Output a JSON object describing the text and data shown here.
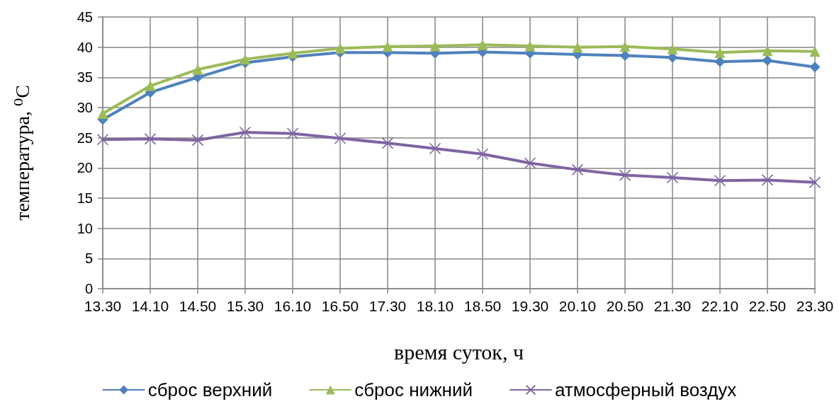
{
  "chart_data": {
    "type": "line",
    "xlabel": "время суток, ч",
    "ylabel": "температура, ⁰C",
    "categories": [
      "13.30",
      "14.10",
      "14.50",
      "15.30",
      "16.10",
      "16.50",
      "17.30",
      "18.10",
      "18.50",
      "19.30",
      "20.10",
      "20.50",
      "21.30",
      "22.10",
      "22.50",
      "23.30"
    ],
    "series": [
      {
        "name": "сброс верхний",
        "color": "#4f81bd",
        "marker": "diamond",
        "values": [
          28.0,
          32.5,
          35.0,
          37.4,
          38.4,
          39.1,
          39.1,
          39.0,
          39.2,
          39.0,
          38.8,
          38.6,
          38.3,
          37.6,
          37.8,
          36.7
        ]
      },
      {
        "name": "сброс нижний",
        "color": "#9bbb59",
        "marker": "triangle",
        "values": [
          29.0,
          33.6,
          36.3,
          38.0,
          39.0,
          39.8,
          40.1,
          40.2,
          40.4,
          40.2,
          40.0,
          40.1,
          39.7,
          39.1,
          39.4,
          39.3
        ]
      },
      {
        "name": "атмосферный воздух",
        "color": "#8064a2",
        "marker": "cross",
        "values": [
          24.7,
          24.8,
          24.6,
          25.9,
          25.7,
          24.9,
          24.1,
          23.2,
          22.3,
          20.8,
          19.7,
          18.8,
          18.4,
          17.9,
          18.0,
          17.6
        ]
      }
    ],
    "ylim": [
      0,
      45
    ],
    "yticks": [
      0,
      5,
      10,
      15,
      20,
      25,
      30,
      35,
      40,
      45
    ],
    "grid": true,
    "legend": "bottom",
    "line_style": "solid"
  }
}
